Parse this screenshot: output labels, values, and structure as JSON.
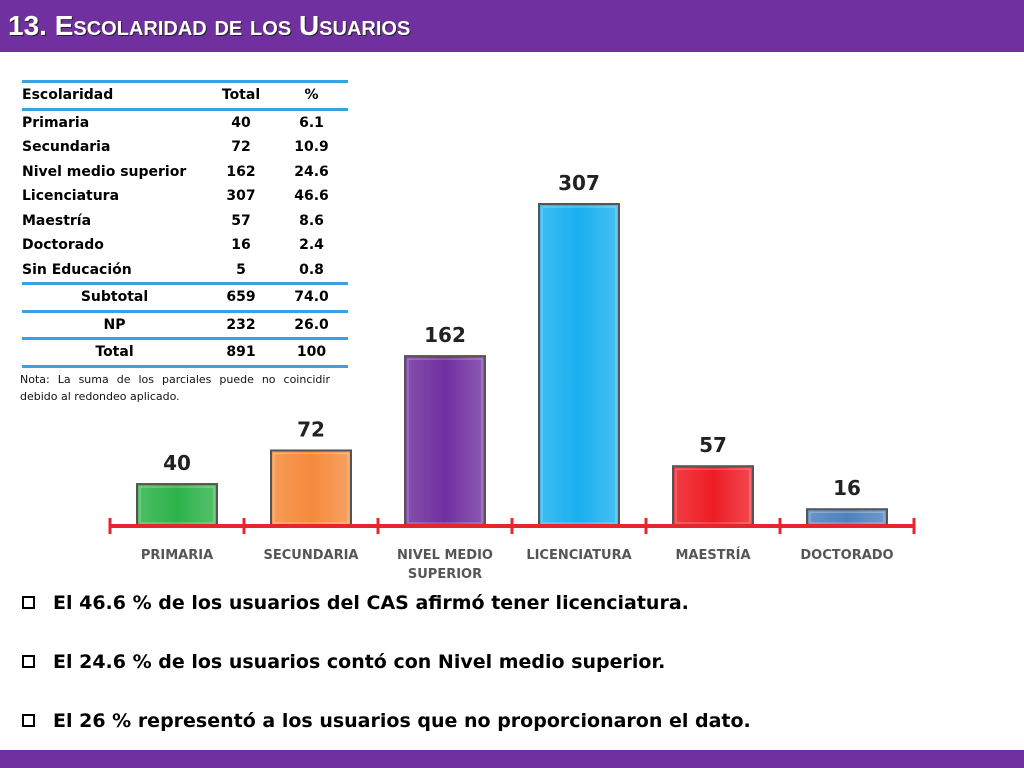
{
  "page": {
    "title": "13. Escolaridad de los Usuarios"
  },
  "table": {
    "headers": [
      "Escolaridad",
      "Total",
      "%"
    ],
    "rows": [
      [
        "Primaria",
        "40",
        "6.1"
      ],
      [
        "Secundaria",
        "72",
        "10.9"
      ],
      [
        "Nivel medio superior",
        "162",
        "24.6"
      ],
      [
        "Licenciatura",
        "307",
        "46.6"
      ],
      [
        "Maestría",
        "57",
        "8.6"
      ],
      [
        "Doctorado",
        "16",
        "2.4"
      ],
      [
        "Sin Educación",
        "5",
        "0.8"
      ]
    ],
    "subtotal": [
      "Subtotal",
      "659",
      "74.0"
    ],
    "np": [
      "NP",
      "232",
      "26.0"
    ],
    "total": [
      "Total",
      "891",
      "100"
    ]
  },
  "note": "Nota: La suma de los parciales puede no coincidir debido al redondeo aplicado.",
  "chart_data": {
    "type": "bar",
    "categories": [
      "PRIMARIA",
      "SECUNDARIA",
      "NIVEL MEDIO SUPERIOR",
      "LICENCIATURA",
      "MAESTRÍA",
      "DOCTORADO"
    ],
    "category_lines": [
      [
        "PRIMARIA"
      ],
      [
        "SECUNDARIA"
      ],
      [
        "NIVEL MEDIO",
        "SUPERIOR"
      ],
      [
        "LICENCIATURA"
      ],
      [
        "MAESTRÍA"
      ],
      [
        "DOCTORADO"
      ]
    ],
    "values": [
      40,
      72,
      162,
      307,
      57,
      16
    ],
    "data_labels": [
      "40",
      "72",
      "162",
      "307",
      "57",
      "16"
    ],
    "colors": [
      "#2db34a",
      "#f58a3c",
      "#7030a0",
      "#1ab0f0",
      "#ee1c24",
      "#4f81bd"
    ],
    "axis_color": "#e8242c",
    "title": "",
    "xlabel": "",
    "ylabel": "",
    "grid": false,
    "legend": "none"
  },
  "bullets": [
    "El 46.6 % de los usuarios del CAS afirmó tener licenciatura.",
    "El 24.6 % de los usuarios contó con Nivel medio superior.",
    "El 26 % representó a los usuarios que no proporcionaron el dato."
  ]
}
